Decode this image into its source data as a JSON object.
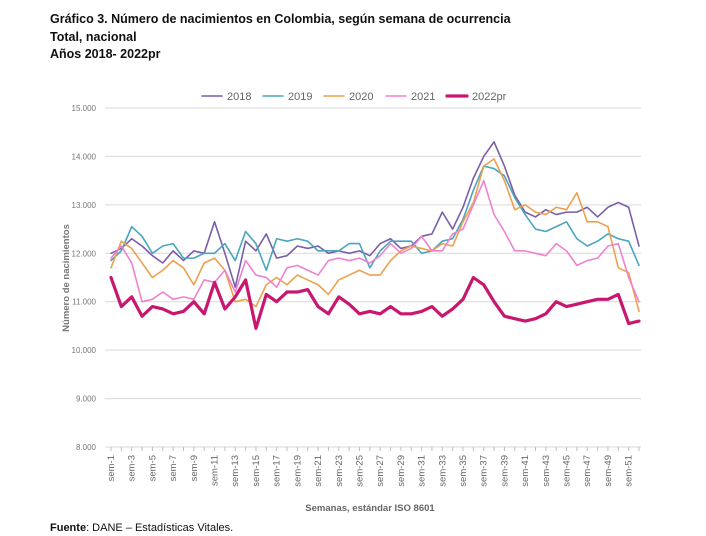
{
  "title_lines": [
    "Gráfico 3. Número de nacimientos en Colombia, según semana de ocurrencia",
    "Total, nacional",
    "Años 2018- 2022pr"
  ],
  "footer": {
    "label": "Fuente",
    "text": ": DANE – Estadísticas Vitales."
  },
  "chart_data": {
    "type": "line",
    "xlabel": "Semanas, estándar ISO 8601",
    "ylabel": "Número de nacimientos",
    "ylim": [
      8000,
      15000
    ],
    "yticks": [
      8000,
      9000,
      10000,
      11000,
      12000,
      13000,
      14000,
      15000
    ],
    "ytick_labels": [
      "8.000",
      "9.000",
      "10.000",
      "11.000",
      "12.000",
      "13.000",
      "14.000",
      "15.000"
    ],
    "xtick_labels": [
      "sem-1",
      "sem-3",
      "sem-5",
      "sem-7",
      "sem-9",
      "sem-11",
      "sem-13",
      "sem-15",
      "sem-17",
      "sem-19",
      "sem-21",
      "sem-23",
      "sem-25",
      "sem-27",
      "sem-29",
      "sem-31",
      "sem-33",
      "sem-35",
      "sem-37",
      "sem-39",
      "sem-41",
      "sem-43",
      "sem-45",
      "sem-47",
      "sem-49",
      "sem-51"
    ],
    "x": [
      1,
      2,
      3,
      4,
      5,
      6,
      7,
      8,
      9,
      10,
      11,
      12,
      13,
      14,
      15,
      16,
      17,
      18,
      19,
      20,
      21,
      22,
      23,
      24,
      25,
      26,
      27,
      28,
      29,
      30,
      31,
      32,
      33,
      34,
      35,
      36,
      37,
      38,
      39,
      40,
      41,
      42,
      43,
      44,
      45,
      46,
      47,
      48,
      49,
      50,
      51,
      52
    ],
    "legend_position": "top",
    "series": [
      {
        "name": "2018",
        "color": "#7b5ea7",
        "width": 1.6,
        "values": [
          12000,
          12100,
          12300,
          12150,
          11950,
          11800,
          12050,
          11850,
          12050,
          12000,
          12650,
          12000,
          11300,
          12250,
          12050,
          12400,
          11900,
          11950,
          12150,
          12100,
          12150,
          12000,
          12050,
          12000,
          12050,
          11950,
          12200,
          12300,
          12100,
          12150,
          12350,
          12400,
          12850,
          12500,
          12950,
          13550,
          14000,
          14300,
          13800,
          13200,
          12850,
          12750,
          12900,
          12800,
          12850,
          12850,
          12950,
          12750,
          12950,
          13050,
          12950,
          12150
        ]
      },
      {
        "name": "2019",
        "color": "#4aa5bf",
        "width": 1.6,
        "values": [
          11850,
          12050,
          12550,
          12350,
          12000,
          12150,
          12200,
          11900,
          11900,
          12000,
          12000,
          12200,
          11850,
          12450,
          12200,
          11650,
          12300,
          12250,
          12300,
          12250,
          12050,
          12050,
          12050,
          12200,
          12200,
          11700,
          12050,
          12250,
          12250,
          12250,
          12000,
          12050,
          12250,
          12300,
          12700,
          13300,
          13800,
          13750,
          13600,
          13150,
          12800,
          12500,
          12450,
          12550,
          12650,
          12300,
          12150,
          12250,
          12400,
          12300,
          12250,
          11750
        ]
      },
      {
        "name": "2020",
        "color": "#eba14e",
        "width": 1.6,
        "values": [
          11700,
          12250,
          12100,
          11800,
          11500,
          11650,
          11850,
          11700,
          11350,
          11800,
          11900,
          11650,
          11000,
          11050,
          10900,
          11350,
          11500,
          11350,
          11550,
          11450,
          11350,
          11150,
          11450,
          11550,
          11650,
          11550,
          11550,
          11850,
          12050,
          12150,
          12100,
          12050,
          12200,
          12150,
          12650,
          13050,
          13800,
          13950,
          13500,
          12900,
          13000,
          12850,
          12800,
          12950,
          12900,
          13250,
          12650,
          12650,
          12550,
          11700,
          11600,
          10800
        ]
      },
      {
        "name": "2021",
        "color": "#ef82cf",
        "width": 1.6,
        "values": [
          11900,
          12150,
          11800,
          11000,
          11050,
          11200,
          11050,
          11100,
          11050,
          11450,
          11400,
          11650,
          11200,
          11850,
          11550,
          11500,
          11300,
          11700,
          11750,
          11650,
          11550,
          11850,
          11900,
          11850,
          11900,
          11800,
          11950,
          12200,
          12000,
          12100,
          12350,
          12050,
          12050,
          12400,
          12500,
          13000,
          13500,
          12800,
          12450,
          12050,
          12050,
          12000,
          11950,
          12200,
          12050,
          11750,
          11850,
          11900,
          12150,
          12200,
          11500,
          11000
        ]
      },
      {
        "name": "2022pr",
        "color": "#c8176f",
        "width": 3.2,
        "values": [
          11500,
          10900,
          11100,
          10700,
          10900,
          10850,
          10750,
          10800,
          11000,
          10750,
          11400,
          10850,
          11100,
          11450,
          10450,
          11150,
          11000,
          11200,
          11200,
          11250,
          10900,
          10750,
          11100,
          10950,
          10750,
          10800,
          10750,
          10900,
          10750,
          10750,
          10800,
          10900,
          10700,
          10850,
          11050,
          11500,
          11350,
          11000,
          10700,
          10650,
          10600,
          10650,
          10750,
          11000,
          10900,
          10950,
          11000,
          11050,
          11050,
          11150,
          10550,
          10600
        ]
      }
    ]
  }
}
